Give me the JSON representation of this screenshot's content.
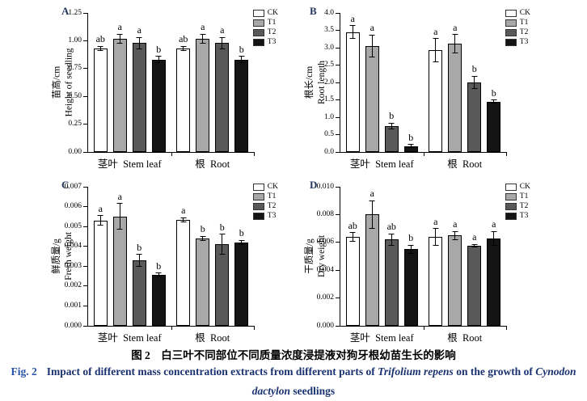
{
  "figure": {
    "caption_cn": "图 2　白三叶不同部位不同质量浓度浸提液对狗牙根幼苗生长的影响",
    "caption_en_line1": [
      {
        "text": "Fig. 2",
        "style": "label"
      },
      {
        "text": "Impact of different mass concentration extracts from different parts of ",
        "style": "normal"
      },
      {
        "text": "Trifolium repens",
        "style": "italic"
      },
      {
        "text": " on the growth of ",
        "style": "normal"
      },
      {
        "text": "Cynodon",
        "style": "italic"
      }
    ],
    "caption_en_line2": [
      {
        "text": "dactylon",
        "style": "italic"
      },
      {
        "text": " seedlings",
        "style": "normal"
      }
    ],
    "caption_en_color": "#1b3270",
    "fig_label_color": "#2a52a8"
  },
  "legend": {
    "position": "top-right",
    "items": [
      {
        "label": "CK",
        "color": "#ffffff"
      },
      {
        "label": "T1",
        "color": "#a8a8a8"
      },
      {
        "label": "T2",
        "color": "#595959"
      },
      {
        "label": "T3",
        "color": "#141414"
      }
    ]
  },
  "chart_data": [
    {
      "type": "bar",
      "panel": "A",
      "ylabel_cn": "苗高/cm",
      "ylabel_en": "Height of seedling",
      "ylim": [
        0,
        1.25
      ],
      "ytick_step": 0.25,
      "ytick_decimals": 2,
      "grid": false,
      "categories": [
        "茎叶  Stem leaf",
        "根  Root"
      ],
      "series": [
        {
          "name": "CK",
          "values": [
            0.93,
            0.93
          ],
          "errors": [
            0.02,
            0.02
          ],
          "letters": [
            "ab",
            "ab"
          ]
        },
        {
          "name": "T1",
          "values": [
            1.02,
            1.02
          ],
          "errors": [
            0.04,
            0.04
          ],
          "letters": [
            "a",
            "a"
          ]
        },
        {
          "name": "T2",
          "values": [
            0.98,
            0.98
          ],
          "errors": [
            0.05,
            0.05
          ],
          "letters": [
            "a",
            "a"
          ]
        },
        {
          "name": "T3",
          "values": [
            0.83,
            0.83
          ],
          "errors": [
            0.03,
            0.03
          ],
          "letters": [
            "b",
            "b"
          ]
        }
      ]
    },
    {
      "type": "bar",
      "panel": "B",
      "ylabel_cn": "根长/cm",
      "ylabel_en": "Root length",
      "ylim": [
        0,
        4.0
      ],
      "ytick_step": 0.5,
      "ytick_decimals": 1,
      "grid": false,
      "categories": [
        "茎叶  Stem leaf",
        "根  Root"
      ],
      "series": [
        {
          "name": "CK",
          "values": [
            3.45,
            2.93
          ],
          "errors": [
            0.18,
            0.33
          ],
          "letters": [
            "a",
            "a"
          ]
        },
        {
          "name": "T1",
          "values": [
            3.05,
            3.12
          ],
          "errors": [
            0.32,
            0.26
          ],
          "letters": [
            "a",
            "a"
          ]
        },
        {
          "name": "T2",
          "values": [
            0.75,
            2.0
          ],
          "errors": [
            0.08,
            0.18
          ],
          "letters": [
            "b",
            "b"
          ]
        },
        {
          "name": "T3",
          "values": [
            0.17,
            1.45
          ],
          "errors": [
            0.04,
            0.04
          ],
          "letters": [
            "b",
            "b"
          ]
        }
      ]
    },
    {
      "type": "bar",
      "panel": "C",
      "ylabel_cn": "鲜质量/g",
      "ylabel_en": "Fresh weight",
      "ylim": [
        0,
        0.007
      ],
      "ytick_step": 0.001,
      "ytick_decimals": 3,
      "grid": false,
      "categories": [
        "茎叶  Stem leaf",
        "根  Root"
      ],
      "series": [
        {
          "name": "CK",
          "values": [
            0.0053,
            0.00535
          ],
          "errors": [
            0.00025,
            0.0001
          ],
          "letters": [
            "a",
            "a"
          ]
        },
        {
          "name": "T1",
          "values": [
            0.0055,
            0.0044
          ],
          "errors": [
            0.00065,
            0.0001
          ],
          "letters": [
            "a",
            "b"
          ]
        },
        {
          "name": "T2",
          "values": [
            0.0033,
            0.0041
          ],
          "errors": [
            0.0003,
            0.0005
          ],
          "letters": [
            "b",
            "b"
          ]
        },
        {
          "name": "T3",
          "values": [
            0.00255,
            0.0042
          ],
          "errors": [
            0.0001,
            0.0001
          ],
          "letters": [
            "b",
            "b"
          ]
        }
      ]
    },
    {
      "type": "bar",
      "panel": "D",
      "ylabel_cn": "干质量/g",
      "ylabel_en": "Dry weight",
      "ylim": [
        0,
        0.01
      ],
      "ytick_step": 0.002,
      "ytick_decimals": 3,
      "grid": false,
      "categories": [
        "茎叶  Stem leaf",
        "根  Root"
      ],
      "series": [
        {
          "name": "CK",
          "values": [
            0.0064,
            0.0064
          ],
          "errors": [
            0.0003,
            0.0006
          ],
          "letters": [
            "ab",
            "a"
          ]
        },
        {
          "name": "T1",
          "values": [
            0.008,
            0.0065
          ],
          "errors": [
            0.001,
            0.0003
          ],
          "letters": [
            "a",
            "a"
          ]
        },
        {
          "name": "T2",
          "values": [
            0.0062,
            0.00575
          ],
          "errors": [
            0.0004,
            0.0001
          ],
          "letters": [
            "ab",
            "a"
          ]
        },
        {
          "name": "T3",
          "values": [
            0.0055,
            0.0063
          ],
          "errors": [
            0.0003,
            0.0005
          ],
          "letters": [
            "b",
            "a"
          ]
        }
      ]
    }
  ]
}
